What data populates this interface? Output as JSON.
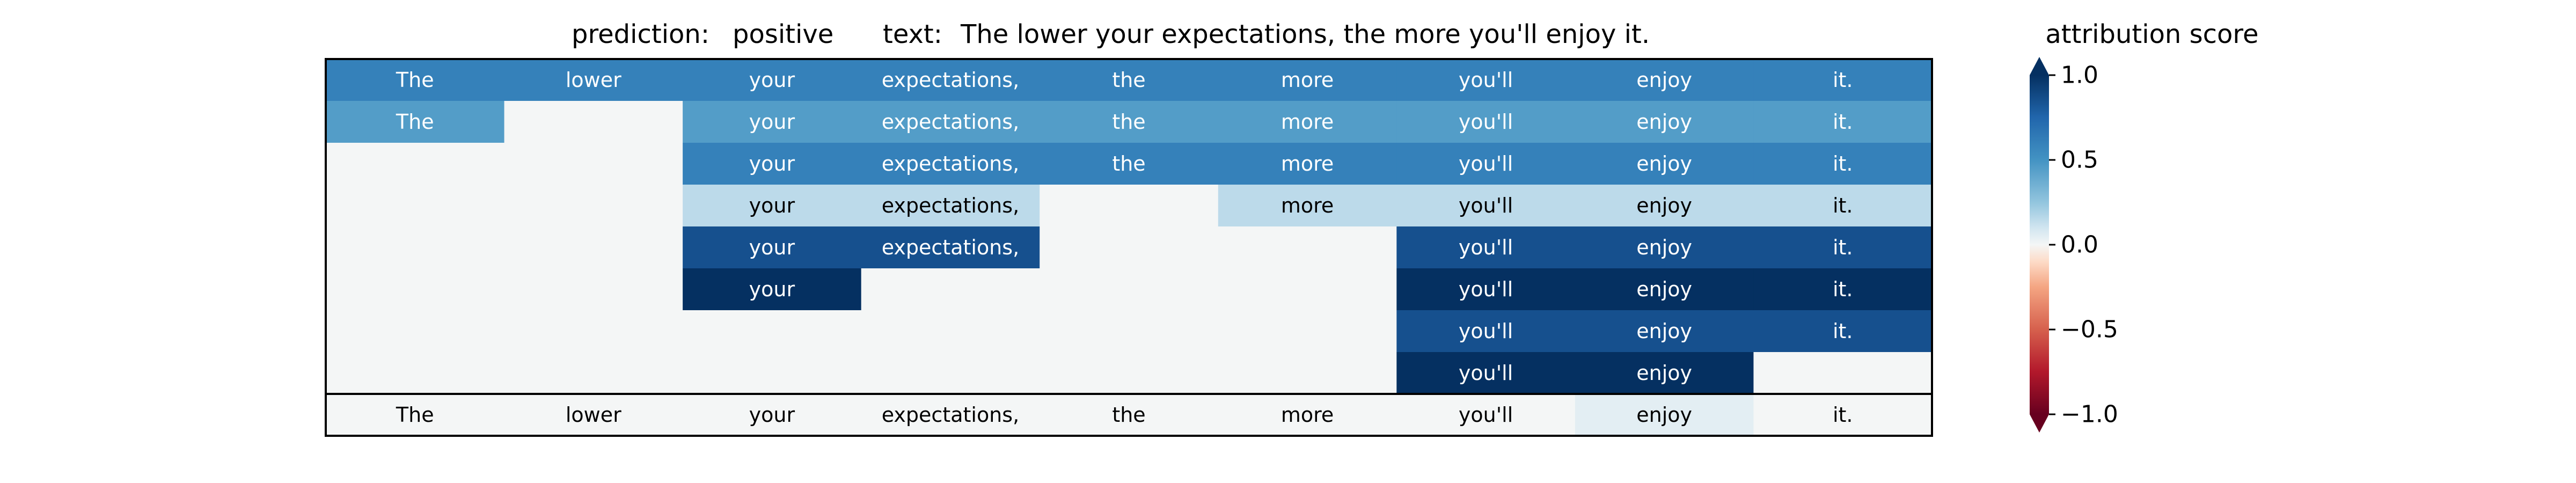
{
  "header": {
    "prediction_label": "prediction:",
    "prediction_value": "positive",
    "text_label": "text:",
    "text_value": "The lower your expectations, the more you'll enjoy it."
  },
  "chart_data": {
    "type": "heatmap",
    "tokens": [
      "The",
      "lower",
      "your",
      "expectations,",
      "the",
      "more",
      "you'll",
      "enjoy",
      "it."
    ],
    "rows": [
      [
        0.6,
        0.6,
        0.6,
        0.6,
        0.6,
        0.6,
        0.6,
        0.6,
        0.6
      ],
      [
        0.45,
        null,
        0.45,
        0.45,
        0.45,
        0.45,
        0.45,
        0.45,
        0.45
      ],
      [
        null,
        null,
        0.6,
        0.6,
        0.6,
        0.6,
        0.6,
        0.6,
        0.6
      ],
      [
        null,
        null,
        0.15,
        0.15,
        null,
        0.15,
        0.15,
        0.15,
        0.15
      ],
      [
        null,
        null,
        0.85,
        0.85,
        null,
        null,
        0.85,
        0.85,
        0.85
      ],
      [
        null,
        null,
        1.0,
        null,
        null,
        null,
        1.0,
        1.0,
        1.0
      ],
      [
        null,
        null,
        null,
        null,
        null,
        null,
        0.85,
        0.85,
        0.85
      ],
      [
        null,
        null,
        null,
        null,
        null,
        null,
        1.0,
        1.0,
        null
      ]
    ],
    "bottom_row": [
      0.0,
      0.0,
      0.0,
      0.0,
      0.0,
      0.0,
      0.0,
      0.05,
      0.0
    ],
    "colorbar": {
      "title": "attribution score",
      "range": [
        -1.0,
        1.0
      ],
      "ticks": [
        1.0,
        0.5,
        0.0,
        -0.5,
        -1.0
      ],
      "tick_labels": [
        "1.0",
        "0.5",
        "0.0",
        "−0.5",
        "−1.0"
      ],
      "colormap": "RdBu"
    }
  }
}
